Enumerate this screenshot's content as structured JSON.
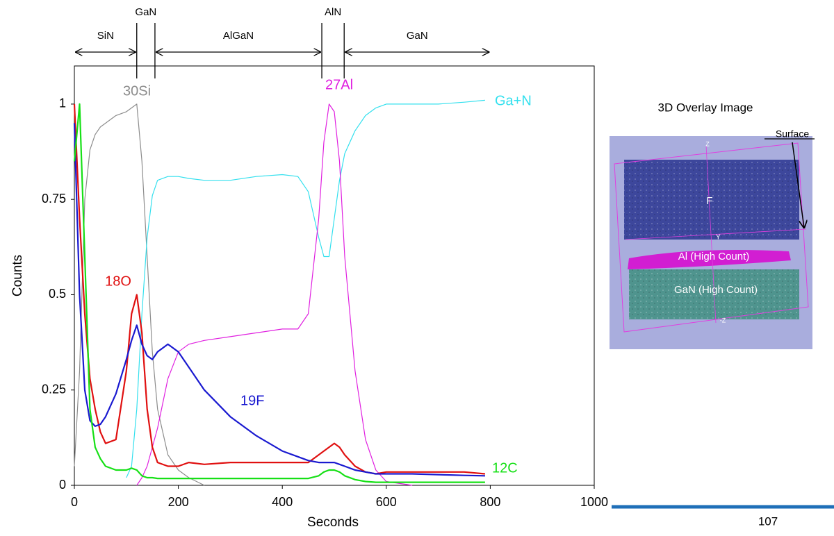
{
  "chart_data": {
    "type": "line",
    "x_label": "Seconds",
    "y_label": "Counts",
    "layers": [
      "SiN",
      "GaN",
      "AlGaN",
      "AlN",
      "GaN"
    ],
    "xlim": [
      0,
      1000
    ],
    "xticks": [
      0,
      200,
      400,
      600,
      800,
      1000
    ],
    "ylim": [
      0,
      1.1
    ],
    "yticks": [
      0,
      0.25,
      0.5,
      0.75,
      1
    ],
    "x": [
      0,
      10,
      20,
      30,
      40,
      50,
      60,
      80,
      100,
      110,
      120,
      130,
      140,
      150,
      160,
      180,
      200,
      220,
      250,
      300,
      350,
      400,
      430,
      450,
      470,
      480,
      490,
      500,
      510,
      520,
      540,
      560,
      580,
      600,
      650,
      700,
      750,
      790
    ],
    "series": [
      {
        "name": "30Si",
        "color": "#8c8c8c",
        "values": [
          0.05,
          0.3,
          0.75,
          0.88,
          0.92,
          0.94,
          0.95,
          0.97,
          0.98,
          0.99,
          1.0,
          0.85,
          0.6,
          0.35,
          0.2,
          0.08,
          0.04,
          0.02,
          0,
          null,
          null,
          null,
          null,
          null,
          null,
          null,
          null,
          null,
          null,
          null,
          null,
          null,
          null,
          null,
          null,
          null,
          null,
          null
        ]
      },
      {
        "name": "Ga+N",
        "color": "#33e0ee",
        "values": [
          null,
          null,
          null,
          null,
          null,
          null,
          null,
          null,
          0.02,
          0.05,
          0.2,
          0.45,
          0.65,
          0.76,
          0.8,
          0.81,
          0.81,
          0.805,
          0.8,
          0.8,
          0.81,
          0.815,
          0.81,
          0.77,
          0.65,
          0.6,
          0.6,
          0.7,
          0.8,
          0.87,
          0.93,
          0.97,
          0.99,
          1.0,
          1.0,
          1.0,
          1.005,
          1.01
        ]
      },
      {
        "name": "27Al",
        "color": "#e020e0",
        "values": [
          null,
          null,
          null,
          null,
          null,
          null,
          null,
          null,
          null,
          null,
          0,
          0.02,
          0.05,
          0.1,
          0.15,
          0.28,
          0.35,
          0.37,
          0.38,
          0.39,
          0.4,
          0.41,
          0.41,
          0.45,
          0.7,
          0.9,
          1.0,
          0.98,
          0.85,
          0.6,
          0.3,
          0.12,
          0.04,
          0.01,
          0,
          null,
          null,
          null
        ]
      },
      {
        "name": "18O",
        "color": "#e01010",
        "values": [
          1.0,
          0.7,
          0.45,
          0.28,
          0.2,
          0.14,
          0.11,
          0.12,
          0.3,
          0.45,
          0.5,
          0.4,
          0.2,
          0.1,
          0.06,
          0.05,
          0.05,
          0.06,
          0.055,
          0.06,
          0.06,
          0.06,
          0.06,
          0.06,
          0.08,
          0.09,
          0.1,
          0.11,
          0.1,
          0.08,
          0.05,
          0.035,
          0.03,
          0.035,
          0.035,
          0.035,
          0.035,
          0.03
        ]
      },
      {
        "name": "19F",
        "color": "#1a1ad0",
        "values": [
          0.95,
          0.5,
          0.25,
          0.17,
          0.155,
          0.16,
          0.18,
          0.24,
          0.33,
          0.38,
          0.42,
          0.37,
          0.34,
          0.33,
          0.35,
          0.37,
          0.35,
          0.31,
          0.25,
          0.18,
          0.13,
          0.09,
          0.075,
          0.065,
          0.06,
          0.06,
          0.06,
          0.06,
          0.055,
          0.05,
          0.04,
          0.035,
          0.03,
          0.03,
          0.03,
          0.028,
          0.026,
          0.025
        ]
      },
      {
        "name": "12C",
        "color": "#16e016",
        "values": [
          0.85,
          1.0,
          0.6,
          0.2,
          0.1,
          0.07,
          0.05,
          0.04,
          0.04,
          0.045,
          0.04,
          0.025,
          0.02,
          0.02,
          0.018,
          0.018,
          0.018,
          0.018,
          0.018,
          0.018,
          0.018,
          0.018,
          0.018,
          0.018,
          0.025,
          0.035,
          0.04,
          0.04,
          0.035,
          0.025,
          0.015,
          0.01,
          0.008,
          0.008,
          0.008,
          0.008,
          0.008,
          0.008
        ]
      }
    ]
  },
  "overlay": {
    "title": "3D Overlay Image",
    "surface": "Surface",
    "f": "F",
    "y_axis": "Y",
    "al": "Al (High Count)",
    "gan": "GaN (High Count)",
    "z": "Z",
    "neg_z": "-Z"
  },
  "page_number": "107"
}
